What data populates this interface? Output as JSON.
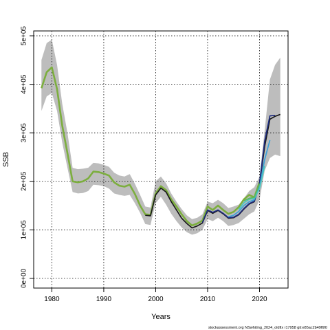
{
  "chart_data": {
    "type": "line",
    "xlabel": "Years",
    "ylabel": "SSB",
    "xlim": [
      1976.5,
      2025.5
    ],
    "ylim": [
      -20000,
      510000
    ],
    "x_ticks": [
      1980,
      1990,
      2000,
      2010,
      2020
    ],
    "x_tick_labels": [
      "1980",
      "1990",
      "2000",
      "2010",
      "2020"
    ],
    "y_ticks": [
      0,
      100000,
      200000,
      300000,
      400000,
      500000
    ],
    "y_tick_labels": [
      "0e+00",
      "1e+05",
      "2e+05",
      "3e+05",
      "4e+05",
      "5e+05"
    ],
    "grid": true,
    "grid_style": "dotted",
    "confidence_band": {
      "x": [
        1978,
        1979,
        1980,
        1981,
        1982,
        1983,
        1984,
        1985,
        1986,
        1987,
        1988,
        1989,
        1990,
        1991,
        1992,
        1993,
        1994,
        1995,
        1996,
        1997,
        1998,
        1999,
        2000,
        2001,
        2002,
        2003,
        2004,
        2005,
        2006,
        2007,
        2008,
        2009,
        2010,
        2011,
        2012,
        2013,
        2014,
        2015,
        2016,
        2017,
        2018,
        2019,
        2020,
        2021,
        2022,
        2023,
        2024
      ],
      "upper": [
        450000,
        485000,
        492000,
        440000,
        360000,
        300000,
        228000,
        225000,
        226000,
        228000,
        238000,
        237000,
        234000,
        230000,
        218000,
        212000,
        210000,
        215000,
        195000,
        172000,
        148000,
        146000,
        200000,
        210000,
        196000,
        175000,
        158000,
        143000,
        130000,
        122000,
        125000,
        132000,
        158000,
        155000,
        162000,
        155000,
        145000,
        148000,
        152000,
        165000,
        180000,
        188000,
        210000,
        305000,
        410000,
        440000,
        455000
      ],
      "lower": [
        345000,
        375000,
        382000,
        345000,
        280000,
        228000,
        178000,
        175000,
        176000,
        180000,
        193000,
        192000,
        190000,
        185000,
        175000,
        172000,
        170000,
        172000,
        155000,
        135000,
        112000,
        110000,
        155000,
        168000,
        152000,
        133000,
        118000,
        105000,
        95000,
        90000,
        93000,
        100000,
        122000,
        118000,
        125000,
        118000,
        108000,
        110000,
        114000,
        123000,
        132000,
        138000,
        162000,
        222000,
        248000,
        255000,
        252000
      ]
    },
    "series": [
      {
        "color": "#7cae3e",
        "x": [
          1978,
          1979,
          1980,
          1981,
          1982,
          1983,
          1984,
          1985,
          1986,
          1987,
          1988,
          1989,
          1990,
          1991,
          1992,
          1993,
          1994,
          1995,
          1996,
          1997,
          1998,
          1999,
          2000,
          2001,
          2002,
          2003,
          2004,
          2005,
          2006,
          2007,
          2008,
          2009,
          2010,
          2011,
          2012,
          2013,
          2014,
          2015,
          2016,
          2017,
          2018,
          2019,
          2020
        ],
        "y": [
          392000,
          425000,
          435000,
          390000,
          315000,
          258000,
          200000,
          198000,
          200000,
          206000,
          220000,
          219000,
          216000,
          212000,
          198000,
          191000,
          189000,
          193000,
          174000,
          150000,
          132000,
          131000,
          175000,
          190000,
          182000,
          163000,
          148000,
          132000,
          118000,
          109000,
          113000,
          119000,
          148000,
          141000,
          150000,
          141000,
          133000,
          137000,
          147000,
          163000,
          172000,
          167000,
          198000
        ]
      },
      {
        "color": "#1a1a1a",
        "x": [
          1998,
          1999,
          2000,
          2001,
          2002,
          2003,
          2004,
          2005,
          2006,
          2007,
          2008,
          2009,
          2010,
          2011,
          2012,
          2013,
          2014,
          2015,
          2016,
          2017,
          2018,
          2019,
          2020,
          2021,
          2022,
          2023,
          2024
        ],
        "y": [
          130000,
          129000,
          172000,
          186000,
          178000,
          158000,
          141000,
          124000,
          113000,
          104000,
          108000,
          114000,
          140000,
          134000,
          140000,
          133000,
          124000,
          125000,
          131000,
          143000,
          153000,
          158000,
          195000,
          272000,
          328000,
          334000,
          338000
        ]
      },
      {
        "color": "#1c2b7e",
        "x": [
          2009,
          2010,
          2011,
          2012,
          2013,
          2014,
          2015,
          2016,
          2017,
          2018,
          2019,
          2020,
          2021,
          2022,
          2023
        ],
        "y": [
          115000,
          141000,
          136000,
          141000,
          134000,
          125000,
          126000,
          132000,
          144000,
          154000,
          159000,
          196000,
          283000,
          335000,
          336000
        ]
      },
      {
        "color": "#3aa0d8",
        "x": [
          2014,
          2015,
          2016,
          2017,
          2018,
          2019,
          2020,
          2021,
          2022
        ],
        "y": [
          127000,
          130000,
          138000,
          150000,
          158000,
          162000,
          188000,
          245000,
          285000
        ]
      },
      {
        "color": "#48c7c0",
        "x": [
          2016,
          2017,
          2018,
          2019,
          2020,
          2021
        ],
        "y": [
          142000,
          156000,
          163000,
          165000,
          185000,
          232000
        ]
      },
      {
        "color": "#5cb85c",
        "x": [
          2017,
          2018,
          2019,
          2020
        ],
        "y": [
          160000,
          165000,
          167000,
          195000
        ]
      }
    ]
  },
  "credit": "stockassessment.org NSwhiting_2024_oldfix r17958 git:e85ac2b49f6f0"
}
